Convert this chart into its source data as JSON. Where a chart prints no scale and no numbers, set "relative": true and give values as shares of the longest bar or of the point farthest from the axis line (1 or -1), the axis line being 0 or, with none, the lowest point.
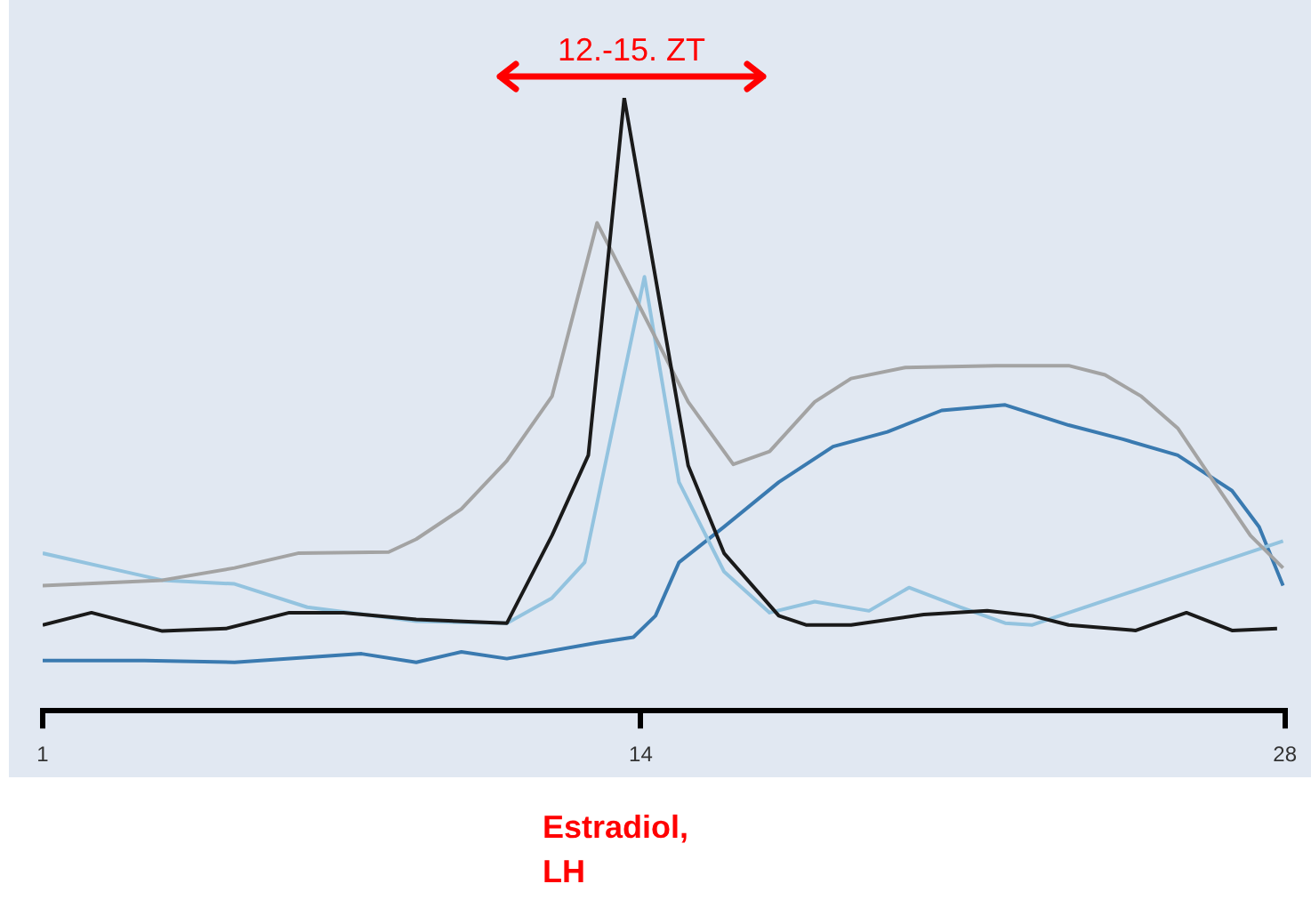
{
  "chart_data": {
    "type": "line",
    "relative": true,
    "xlim": [
      1,
      28
    ],
    "xticks": [
      1,
      14,
      28
    ],
    "annotations": [
      "12.-15. ZT",
      "Estradiol,\nLH"
    ],
    "series": [
      {
        "color": "#1a1a1a",
        "x": [
          1,
          2.06,
          3.6,
          4.98,
          6.36,
          7.54,
          9.12,
          11.09,
          12.07,
          12.86,
          13.64,
          15.03,
          15.81,
          17,
          17.59,
          18.57,
          20.15,
          21.53,
          22.51,
          23.3,
          24.76,
          25.86,
          26.85,
          27.83
        ],
        "values": [
          0.14,
          0.16,
          0.13,
          0.134,
          0.16,
          0.16,
          0.149,
          0.143,
          0.286,
          0.417,
          1,
          0.4,
          0.257,
          0.155,
          0.14,
          0.14,
          0.157,
          0.163,
          0.155,
          0.14,
          0.131,
          0.16,
          0.131,
          0.134
        ]
      },
      {
        "color": "#a3a3a3",
        "x": [
          1,
          3.6,
          5.17,
          6.55,
          8.52,
          9.12,
          10.1,
          11.09,
          12.07,
          13.05,
          14.04,
          15.03,
          16.01,
          16.8,
          17.78,
          18.57,
          19.75,
          21.72,
          23.3,
          24.09,
          24.88,
          25.67,
          26.46,
          27.25,
          27.96
        ],
        "values": [
          0.204,
          0.213,
          0.233,
          0.257,
          0.259,
          0.28,
          0.329,
          0.408,
          0.513,
          0.796,
          0.65,
          0.504,
          0.402,
          0.423,
          0.504,
          0.542,
          0.56,
          0.563,
          0.563,
          0.548,
          0.513,
          0.461,
          0.373,
          0.286,
          0.233
        ]
      },
      {
        "color": "#93c3df",
        "x": [
          1,
          2.42,
          3.6,
          5.17,
          6.75,
          9.12,
          11.09,
          12.07,
          12.78,
          14.08,
          14.83,
          15.81,
          16.8,
          17.78,
          18.96,
          19.83,
          20.94,
          21.92,
          22.51,
          27.96
        ],
        "values": [
          0.257,
          0.233,
          0.213,
          0.207,
          0.169,
          0.146,
          0.143,
          0.184,
          0.242,
          0.708,
          0.373,
          0.227,
          0.16,
          0.178,
          0.163,
          0.201,
          0.169,
          0.143,
          0.14,
          0.277
        ]
      },
      {
        "color": "#3a7ab0",
        "x": [
          1,
          3.21,
          5.17,
          7.93,
          9.12,
          10.1,
          11.09,
          13.05,
          13.84,
          14.32,
          14.83,
          15.81,
          17,
          18.18,
          19.36,
          20.54,
          21.92,
          23.3,
          24.48,
          25.67,
          26.85,
          27.44,
          27.96
        ],
        "values": [
          0.082,
          0.082,
          0.079,
          0.093,
          0.079,
          0.096,
          0.085,
          0.111,
          0.12,
          0.155,
          0.242,
          0.3,
          0.373,
          0.431,
          0.455,
          0.49,
          0.499,
          0.466,
          0.443,
          0.417,
          0.359,
          0.3,
          0.204
        ]
      }
    ]
  }
}
